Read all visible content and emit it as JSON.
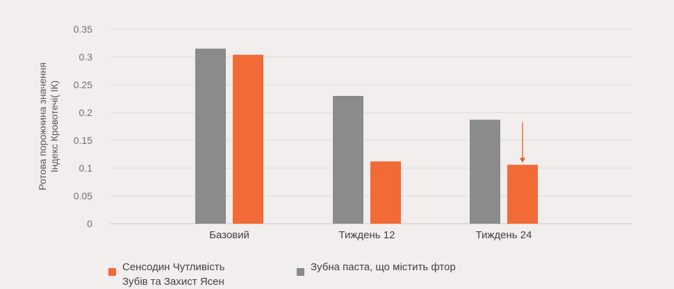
{
  "colors": {
    "fluoride": "#898b8d",
    "sensodyne": "#f26a36",
    "grid": "#dcdcdc",
    "arrow": "#e85a2a"
  },
  "chart_data": {
    "type": "bar",
    "categories": [
      "Базовий",
      "Тиждень 12",
      "Тиждень 24"
    ],
    "series": [
      {
        "name": "Зубна паста, що містить фтор",
        "color": "#898b8d",
        "values": [
          0.315,
          0.23,
          0.187
        ]
      },
      {
        "name": "Сенсодин Чутливість Зубів та Захист Ясен",
        "color": "#f26a36",
        "values": [
          0.304,
          0.112,
          0.106
        ]
      }
    ],
    "ylabel_lines": [
      "Ротова порожнина значення",
      "Індекс Кровотечі( ІК)"
    ],
    "xlabel": "",
    "ylim": [
      0,
      0.35
    ],
    "yticks": [
      "0",
      "0.05",
      "0.1",
      "0.15",
      "0.2",
      "0.25",
      "0.3",
      "0.35"
    ],
    "grid": true,
    "legend_position": "bottom",
    "annotation": {
      "type": "arrow",
      "category": "Тиждень 24",
      "series": "Сенсодин Чутливість Зубів та Захист Ясен"
    }
  },
  "legend": [
    {
      "lines": [
        "Сенсодин Чутливість",
        "Зубів та Захист Ясен"
      ],
      "color": "#f26a36"
    },
    {
      "lines": [
        "Зубна паста, що містить фтор"
      ],
      "color": "#898b8d"
    }
  ]
}
